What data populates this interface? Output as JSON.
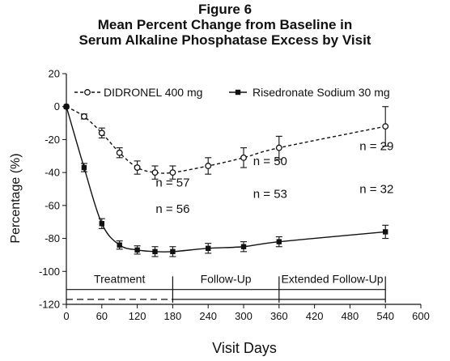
{
  "chart_data": {
    "type": "line",
    "title": [
      "Figure 6",
      "Mean Percent Change from Baseline in",
      "Serum Alkaline Phosphatase Excess by Visit"
    ],
    "xlabel": "Visit Days",
    "ylabel": "Percentage (%)",
    "xlim": [
      0,
      600
    ],
    "ylim": [
      -120,
      20
    ],
    "x_ticks": [
      "0",
      "60",
      "120",
      "180",
      "240",
      "300",
      "360",
      "420",
      "480",
      "540",
      "600"
    ],
    "y_ticks": [
      "20",
      "0",
      "-20",
      "-40",
      "-60",
      "-80",
      "-100",
      "-120"
    ],
    "grid": false,
    "legend_position": "top",
    "series": [
      {
        "name": "DIDRONEL 400 mg",
        "style": "dashed",
        "marker": "open-circle",
        "x": [
          0,
          30,
          60,
          90,
          120,
          150,
          180,
          240,
          300,
          360,
          540
        ],
        "y": [
          0,
          -6,
          -16,
          -28,
          -37,
          -40,
          -40,
          -36,
          -31,
          -25,
          -12
        ],
        "error": [
          0,
          1.5,
          3,
          3,
          4,
          4,
          4,
          5,
          6,
          7,
          12
        ]
      },
      {
        "name": "Risedronate Sodium 30 mg",
        "style": "solid",
        "marker": "filled-square",
        "x": [
          0,
          30,
          60,
          90,
          120,
          150,
          180,
          240,
          300,
          360,
          540
        ],
        "y": [
          0,
          -37,
          -71,
          -84,
          -87,
          -88,
          -88,
          -86,
          -85,
          -82,
          -76
        ],
        "error": [
          0,
          2.5,
          3,
          2.5,
          2.5,
          3,
          3,
          3,
          3,
          3,
          4
        ]
      }
    ],
    "annotations": [
      {
        "text": "n = 57",
        "x": 180,
        "y": -46
      },
      {
        "text": "n = 50",
        "x": 345,
        "y": -33
      },
      {
        "text": "n = 29",
        "x": 525,
        "y": -24
      },
      {
        "text": "n = 56",
        "x": 180,
        "y": -62
      },
      {
        "text": "n = 53",
        "x": 345,
        "y": -53
      },
      {
        "text": "n = 32",
        "x": 525,
        "y": -50
      }
    ],
    "periods": [
      {
        "label": "Treatment",
        "start": 0,
        "end": 180
      },
      {
        "label": "Follow-Up",
        "start": 180,
        "end": 360
      },
      {
        "label": "Extended Follow-Up",
        "start": 360,
        "end": 540
      }
    ]
  }
}
